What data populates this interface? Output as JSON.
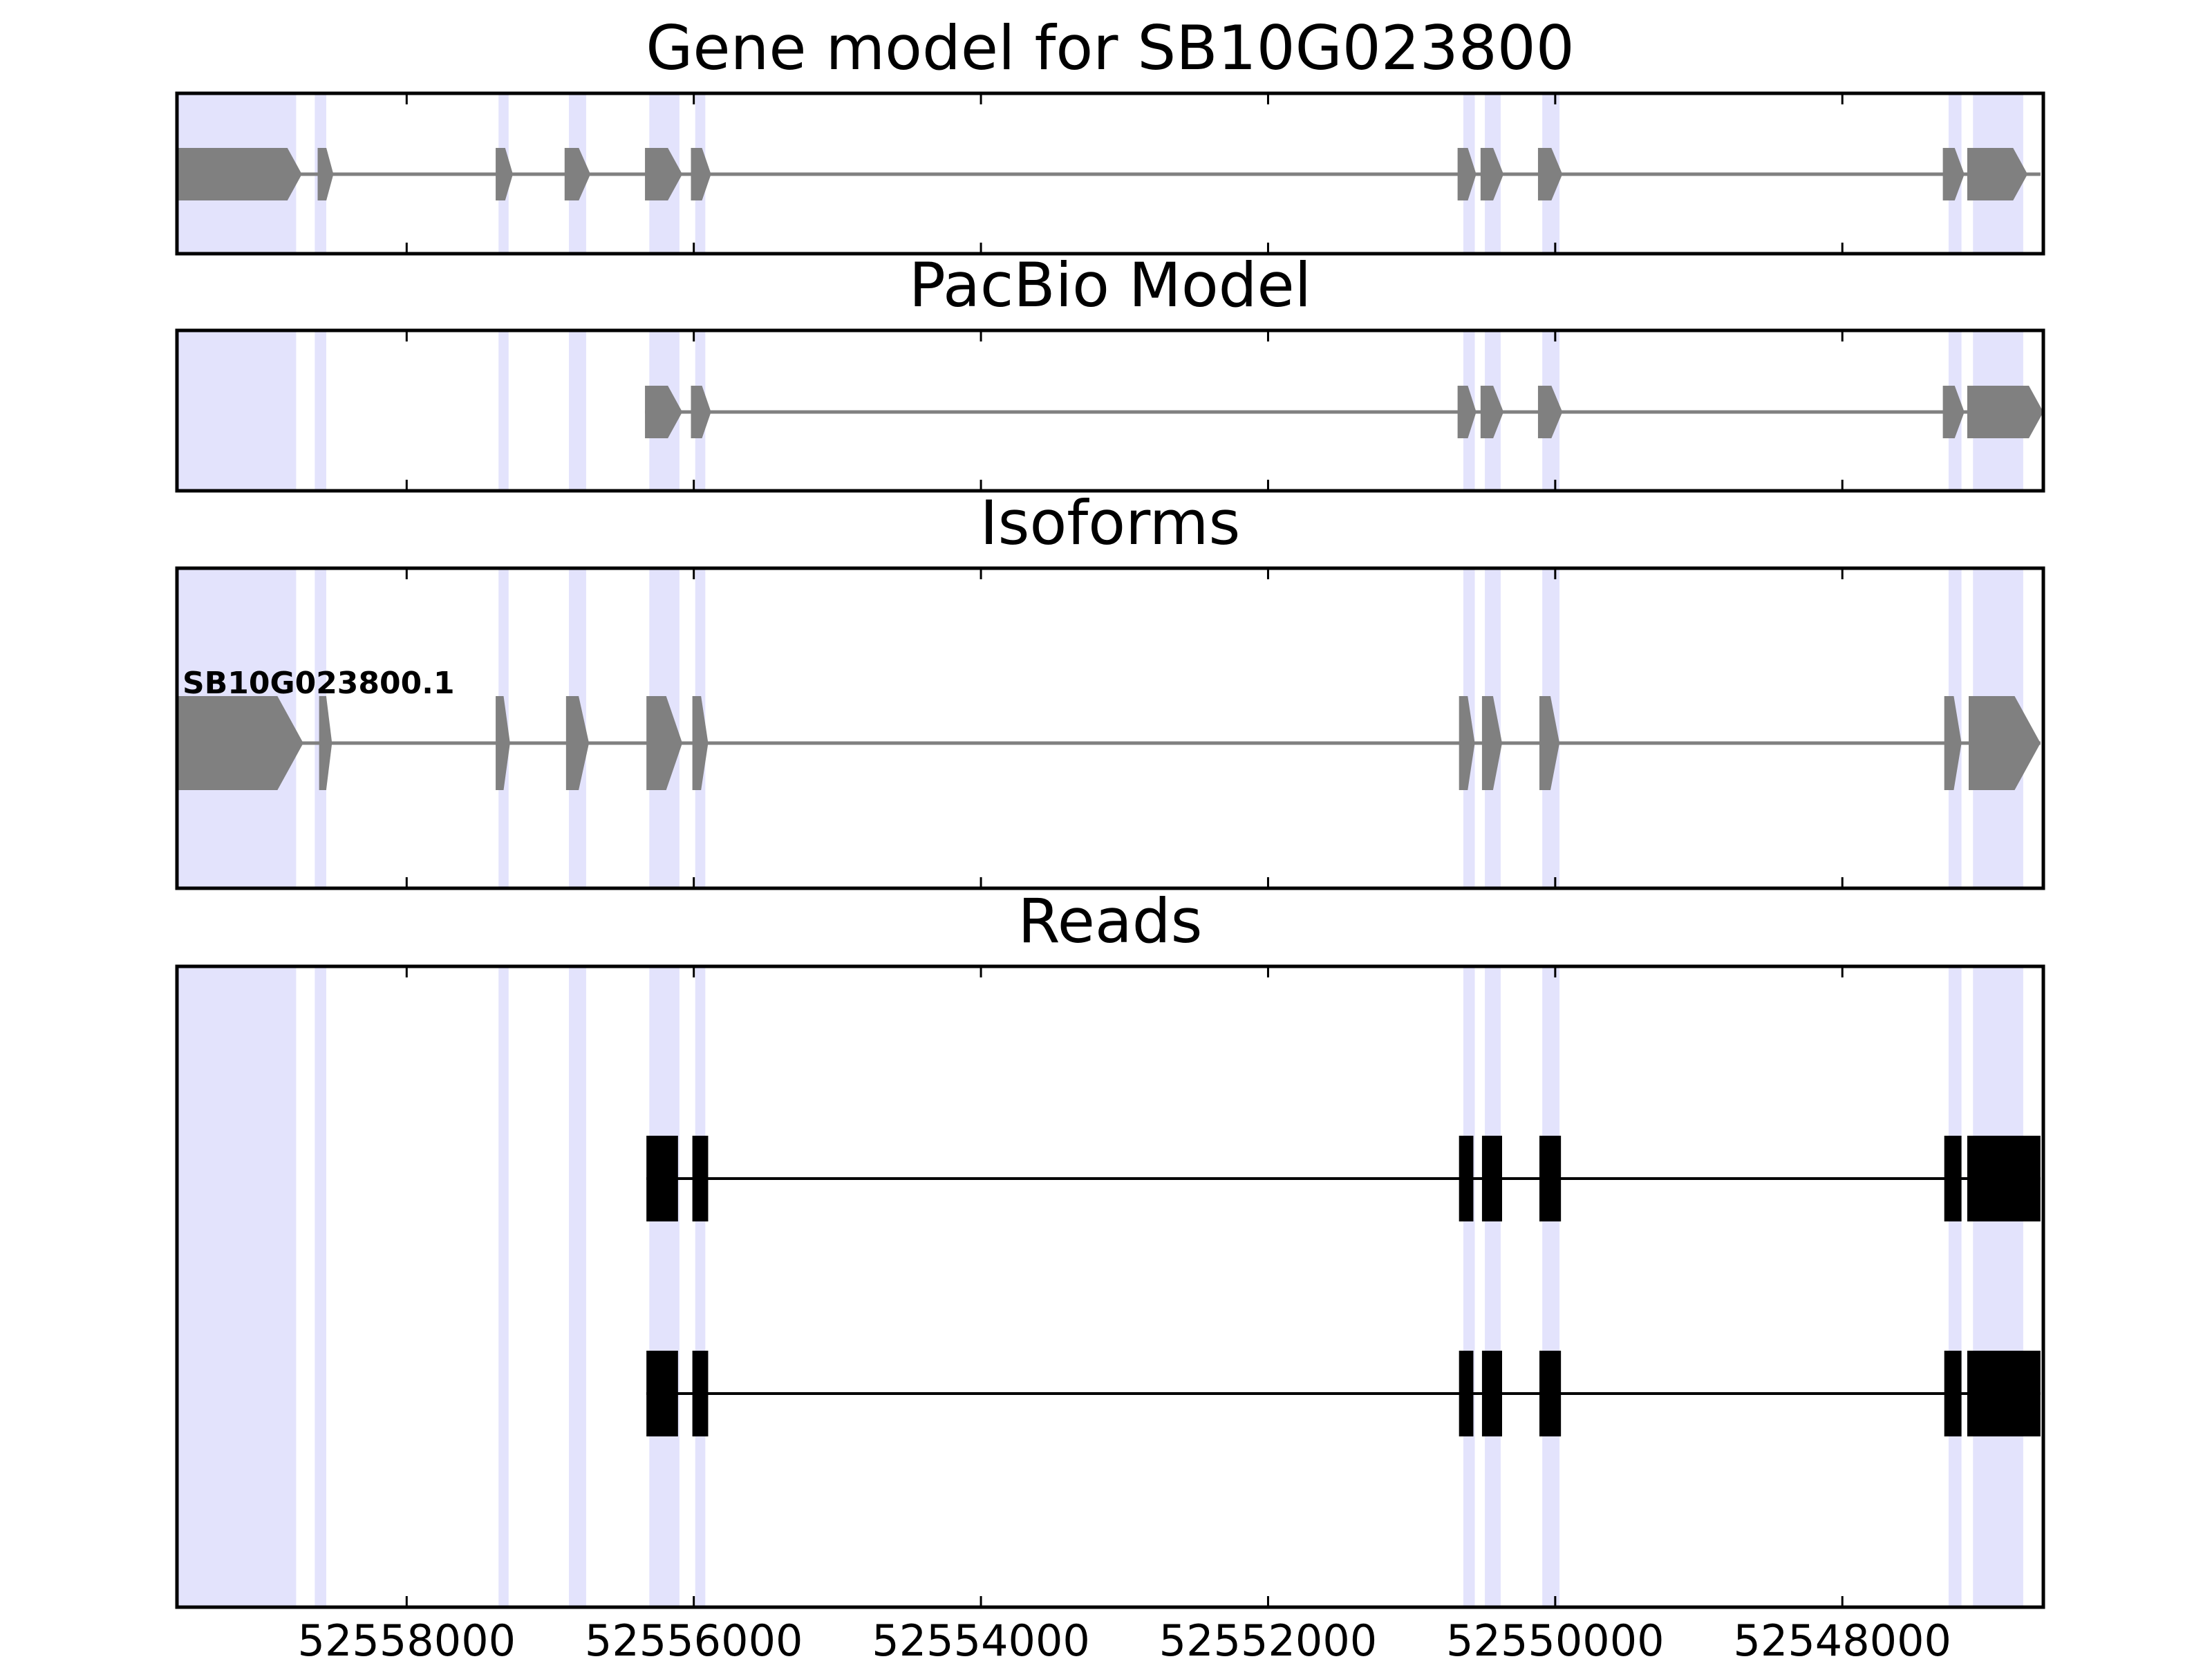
{
  "colors": {
    "highlight": "#e3e3fc",
    "gene_feature": "#808080",
    "read_feature": "#000000",
    "frame": "#000000",
    "background": "#ffffff"
  },
  "chart_data": {
    "type": "gene-track",
    "x_axis": {
      "reversed": true,
      "range": [
        52559600,
        52546600
      ],
      "ticks": [
        52558000,
        52556000,
        52554000,
        52552000,
        52550000,
        52548000
      ],
      "tick_labels": [
        "52558000",
        "52556000",
        "52554000",
        "52552000",
        "52550000",
        "52548000"
      ]
    },
    "highlight_regions": [
      [
        52559600,
        52558770
      ],
      [
        52558640,
        52558560
      ],
      [
        52557360,
        52557290
      ],
      [
        52556870,
        52556750
      ],
      [
        52556310,
        52556100
      ],
      [
        52555990,
        52555920
      ],
      [
        52550640,
        52550560
      ],
      [
        52550490,
        52550380
      ],
      [
        52550090,
        52549970
      ],
      [
        52547260,
        52547170
      ],
      [
        52547090,
        52546740
      ]
    ],
    "panels": [
      {
        "title": "Gene model for SB10G023800",
        "tracks": [
          {
            "label": "",
            "style": "arrow",
            "intron": [
              52559600,
              52546620
            ],
            "exons": [
              [
                52559600,
                52558730
              ],
              [
                52558620,
                52558510
              ],
              [
                52557380,
                52557260
              ],
              [
                52556900,
                52556720
              ],
              [
                52556340,
                52556080
              ],
              [
                52556020,
                52555880
              ],
              [
                52550680,
                52550550
              ],
              [
                52550520,
                52550360
              ],
              [
                52550120,
                52549950
              ],
              [
                52547300,
                52547150
              ],
              [
                52547130,
                52546710
              ]
            ]
          }
        ]
      },
      {
        "title": "PacBio Model",
        "tracks": [
          {
            "label": "",
            "style": "arrow",
            "intron": [
              52556340,
              52546600
            ],
            "exons": [
              [
                52556340,
                52556080
              ],
              [
                52556020,
                52555880
              ],
              [
                52550680,
                52550550
              ],
              [
                52550520,
                52550360
              ],
              [
                52550120,
                52549950
              ],
              [
                52547300,
                52547150
              ],
              [
                52547130,
                52546600
              ]
            ]
          }
        ]
      },
      {
        "title": "Isoforms",
        "tracks": [
          {
            "label": "SB10G023800.1",
            "style": "arrow",
            "intron": [
              52559600,
              52546620
            ],
            "exons": [
              [
                52559600,
                52558720
              ],
              [
                52558610,
                52558520
              ],
              [
                52557380,
                52557280
              ],
              [
                52556890,
                52556730
              ],
              [
                52556330,
                52556080
              ],
              [
                52556010,
                52555900
              ],
              [
                52550670,
                52550560
              ],
              [
                52550510,
                52550370
              ],
              [
                52550110,
                52549970
              ],
              [
                52547290,
                52547170
              ],
              [
                52547120,
                52546620
              ]
            ]
          }
        ]
      },
      {
        "title": "Reads",
        "tracks": [
          {
            "label": "",
            "style": "block",
            "intron": [
              52556330,
              52546620
            ],
            "exons": [
              [
                52556330,
                52556110
              ],
              [
                52556010,
                52555900
              ],
              [
                52550670,
                52550570
              ],
              [
                52550510,
                52550370
              ],
              [
                52550110,
                52549960
              ],
              [
                52547290,
                52547170
              ],
              [
                52547130,
                52546620
              ]
            ]
          },
          {
            "label": "",
            "style": "block",
            "intron": [
              52556330,
              52546620
            ],
            "exons": [
              [
                52556330,
                52556110
              ],
              [
                52556010,
                52555900
              ],
              [
                52550670,
                52550570
              ],
              [
                52550510,
                52550370
              ],
              [
                52550110,
                52549960
              ],
              [
                52547290,
                52547170
              ],
              [
                52547130,
                52546620
              ]
            ]
          }
        ]
      }
    ]
  }
}
